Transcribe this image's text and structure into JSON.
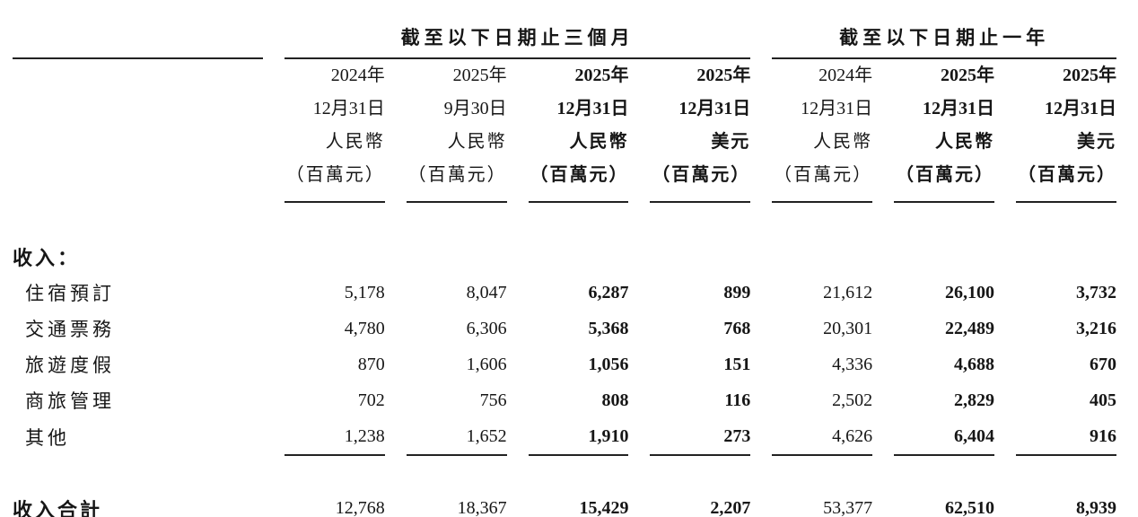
{
  "colors": {
    "background": "#ffffff",
    "text": "#161616",
    "rule": "#222222"
  },
  "table": {
    "group_headers": [
      {
        "label": "截至以下日期止三個月"
      },
      {
        "label": "截至以下日期止一年"
      }
    ],
    "columns": [
      {
        "lines": [
          "2024年",
          "12月31日",
          "人民幣",
          "（百萬元）"
        ],
        "bold": false
      },
      {
        "lines": [
          "2025年",
          "9月30日",
          "人民幣",
          "（百萬元）"
        ],
        "bold": false
      },
      {
        "lines": [
          "2025年",
          "12月31日",
          "人民幣",
          "（百萬元）"
        ],
        "bold": true
      },
      {
        "lines": [
          "2025年",
          "12月31日",
          "美元",
          "（百萬元）"
        ],
        "bold": true
      },
      {
        "lines": [
          "2024年",
          "12月31日",
          "人民幣",
          "（百萬元）"
        ],
        "bold": false
      },
      {
        "lines": [
          "2025年",
          "12月31日",
          "人民幣",
          "（百萬元）"
        ],
        "bold": true
      },
      {
        "lines": [
          "2025年",
          "12月31日",
          "美元",
          "（百萬元）"
        ],
        "bold": true
      }
    ],
    "section": {
      "label": "收入："
    },
    "rows": [
      {
        "label": "住宿預訂",
        "values": [
          "5,178",
          "8,047",
          "6,287",
          "899",
          "21,612",
          "26,100",
          "3,732"
        ]
      },
      {
        "label": "交通票務",
        "values": [
          "4,780",
          "6,306",
          "5,368",
          "768",
          "20,301",
          "22,489",
          "3,216"
        ]
      },
      {
        "label": "旅遊度假",
        "values": [
          "870",
          "1,606",
          "1,056",
          "151",
          "4,336",
          "4,688",
          "670"
        ]
      },
      {
        "label": "商旅管理",
        "values": [
          "702",
          "756",
          "808",
          "116",
          "2,502",
          "2,829",
          "405"
        ]
      },
      {
        "label": "其他",
        "values": [
          "1,238",
          "1,652",
          "1,910",
          "273",
          "4,626",
          "6,404",
          "916"
        ]
      }
    ],
    "total_row": {
      "label": "收入合計",
      "values": [
        "12,768",
        "18,367",
        "15,429",
        "2,207",
        "53,377",
        "62,510",
        "8,939"
      ]
    }
  }
}
